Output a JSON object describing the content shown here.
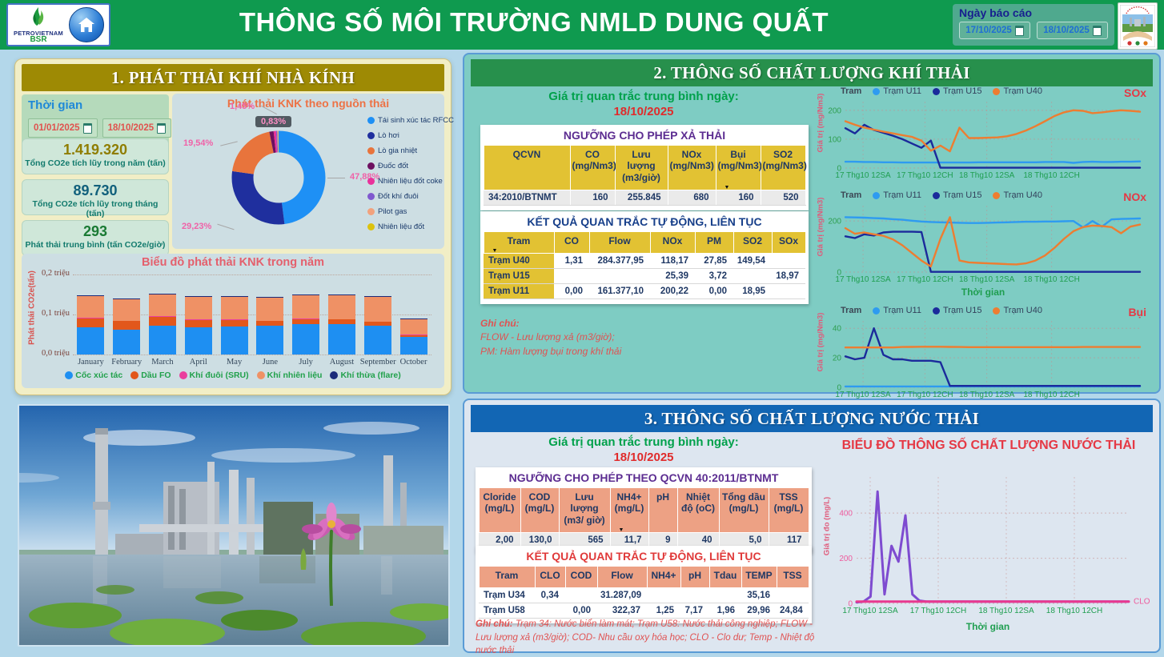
{
  "palette": {
    "header_green": "#0f9a4f",
    "section1_gold": "#9e8a04",
    "section2_green": "#27904c",
    "section3_blue": "#1266b4",
    "section2_bg": "#7eccc3",
    "section3_bg": "#dde6f0",
    "avg_label_green": "#00a14b",
    "date_red": "#e02b2b",
    "note_red": "#e05252"
  },
  "header": {
    "logo_line1": "PETROVIETNAM",
    "logo_line2": "BSR",
    "title": "THÔNG SỐ MÔI TRƯỜNG NMLD DUNG QUẤT",
    "report_date_label": "Ngày báo cáo",
    "date_from": "17/10/2025",
    "date_to": "18/10/2025"
  },
  "section1": {
    "title": "1. PHÁT THẢI KHÍ NHÀ KÍNH",
    "time": {
      "label": "Thời gian",
      "from": "01/01/2025",
      "to": "18/10/2025"
    },
    "stats": [
      {
        "value": "1.419.320",
        "label": "Tổng CO2e tích lũy trong năm (tấn)",
        "value_color": "#8f7d00"
      },
      {
        "value": "89.730",
        "label": "Tổng CO2e tích lũy trong tháng (tấn)",
        "value_color": "#11607c"
      },
      {
        "value": "293",
        "label": "Phát thải trung bình (tấn CO2e/giờ)",
        "value_color": "#1a7a34"
      }
    ]
  },
  "section2": {
    "title": "2. THÔNG SỐ CHẤT LƯỢNG KHÍ THẢI",
    "avg_label": "Giá trị quan trắc trung bình ngày:",
    "avg_date": "18/10/2025",
    "limits_table": {
      "title": "NGƯỠNG CHO PHÉP XẢ THẢI",
      "title_color": "#5c2d91",
      "columns": [
        {
          "label": "QCVN"
        },
        {
          "label": "CO",
          "unit": "(mg/Nm3)"
        },
        {
          "label": "Lưu lượng",
          "unit": "(m3/giờ)"
        },
        {
          "label": "NOx",
          "unit": "(mg/Nm3)"
        },
        {
          "label": "Bụi",
          "unit": "(mg/Nm3)",
          "sort": true
        },
        {
          "label": "SO2",
          "unit": "(mg/Nm3)"
        }
      ],
      "rows": [
        [
          "34:2010/BTNMT",
          "160",
          "255.845",
          "680",
          "160",
          "520"
        ]
      ]
    },
    "results_table": {
      "title": "KẾT QUẢ QUAN TRẮC TỰ ĐỘNG, LIÊN TỤC",
      "title_color": "#173f8a",
      "columns": [
        {
          "label": "Tram",
          "sort": true
        },
        {
          "label": "CO"
        },
        {
          "label": "Flow"
        },
        {
          "label": "NOx"
        },
        {
          "label": "PM"
        },
        {
          "label": "SO2"
        },
        {
          "label": "SOx"
        }
      ],
      "rows": [
        [
          "Trạm U40",
          "1,31",
          "284.377,95",
          "118,17",
          "27,85",
          "149,54",
          ""
        ],
        [
          "Trạm U15",
          "",
          "",
          "25,39",
          "3,72",
          "",
          "18,97"
        ],
        [
          "Trạm U11",
          "0,00",
          "161.377,10",
          "200,22",
          "0,00",
          "18,95",
          ""
        ]
      ]
    },
    "note": {
      "heading": "Ghi chú:",
      "lines": [
        "FLOW - Lưu lượng xả (m3/giờ);",
        "PM: Hàm lượng bụi trong khí thải"
      ]
    }
  },
  "section3": {
    "title": "3. THÔNG SỐ CHẤT LƯỢNG NƯỚC THẢI",
    "avg_label": "Giá trị quan trắc trung bình ngày:",
    "avg_date": "18/10/2025",
    "limits_table": {
      "title": "NGƯỠNG CHO PHÉP THEO QCVN 40:2011/BTNMT",
      "title_color": "#5c2d91",
      "columns": [
        {
          "label": "Cloride",
          "unit": "(mg/L)"
        },
        {
          "label": "COD",
          "unit": "(mg/L)"
        },
        {
          "label": "Lưu lượng",
          "unit": "(m3/ giờ)"
        },
        {
          "label": "NH4+",
          "unit": "(mg/L)",
          "sort": true
        },
        {
          "label": "pH"
        },
        {
          "label": "Nhiệt",
          "unit": "độ (oC)"
        },
        {
          "label": "Tổng dầu",
          "unit": "(mg/L)"
        },
        {
          "label": "TSS",
          "unit": "(mg/L)"
        }
      ],
      "rows": [
        [
          "2,00",
          "130,0",
          "565",
          "11,7",
          "9",
          "40",
          "5,0",
          "117"
        ]
      ]
    },
    "results_table": {
      "title": "KẾT QUẢ QUAN TRẮC TỰ ĐỘNG, LIÊN TỤC",
      "title_color": "#e03a3a",
      "columns": [
        {
          "label": "Tram"
        },
        {
          "label": "CLO"
        },
        {
          "label": "COD"
        },
        {
          "label": "Flow"
        },
        {
          "label": "NH4+"
        },
        {
          "label": "pH"
        },
        {
          "label": "Tdau"
        },
        {
          "label": "TEMP"
        },
        {
          "label": "TSS"
        }
      ],
      "rows": [
        [
          "Trạm U34",
          "0,34",
          "",
          "31.287,09",
          "",
          "",
          "",
          "35,16",
          ""
        ],
        [
          "Trạm U58",
          "",
          "0,00",
          "322,37",
          "1,25",
          "7,17",
          "1,96",
          "29,96",
          "24,84"
        ]
      ]
    },
    "note": {
      "heading": "Ghi chú:",
      "text": "Trạm 34: Nước biển làm mát; Trạm U58: Nước thải công nghiệp; FLOW - Lưu lượng xả (m3/giờ);  COD- Nhu cầu oxy hóa học; CLO - Clo dư; Temp - Nhiệt độ nước thải"
    }
  },
  "chart_data": [
    {
      "id": "knk-donut",
      "type": "pie",
      "title": "Phát thải KNK theo nguồn thải",
      "labels": [
        "Tái sinh xúc tác RFCC",
        "Lò hơi",
        "Lò gia nhiệt",
        "Đuốc đốt",
        "Nhiên liệu đốt coke",
        "Đốt khí đuôi",
        "Pilot gas",
        "Nhiên liệu đốt"
      ],
      "values": [
        47.88,
        29.23,
        19.54,
        1.45,
        0.83,
        0.45,
        0.35,
        0.27
      ],
      "colors": [
        "#1e90f5",
        "#1f2f9e",
        "#e8743c",
        "#6d1060",
        "#e9319b",
        "#8059cf",
        "#f2a27d",
        "#dcc20e"
      ],
      "percent_labels": [
        "47,88%",
        "29,23%",
        "19,54%",
        "1,45%",
        "0,83%"
      ]
    },
    {
      "id": "knk-bar",
      "type": "bar",
      "title": "Biểu đồ phát thải KNK trong năm",
      "ylabel": "Phát thải CO2e(tấn)",
      "yticks": [
        "0,0 triệu",
        "0,1 triệu",
        "0,2 triệu"
      ],
      "ymax": 0.2,
      "categories": [
        "January",
        "February",
        "March",
        "April",
        "May",
        "June",
        "July",
        "August",
        "September",
        "October"
      ],
      "series": [
        {
          "name": "Cốc xúc tác",
          "color": "#1e8ff2",
          "values": [
            0.069,
            0.063,
            0.072,
            0.069,
            0.071,
            0.072,
            0.076,
            0.076,
            0.072,
            0.044
          ]
        },
        {
          "name": "Dầu FO",
          "color": "#e2571b",
          "values": [
            0.022,
            0.021,
            0.023,
            0.018,
            0.016,
            0.012,
            0.013,
            0.012,
            0.01,
            0.005
          ]
        },
        {
          "name": "Khí đuôi (SRU)",
          "color": "#ea3f9e",
          "values": [
            0.001,
            0.001,
            0.001,
            0.001,
            0.001,
            0.001,
            0.001,
            0.001,
            0.001,
            0.001
          ]
        },
        {
          "name": "Khí nhiên liệu",
          "color": "#ef9165",
          "values": [
            0.054,
            0.053,
            0.055,
            0.056,
            0.057,
            0.057,
            0.059,
            0.06,
            0.061,
            0.039
          ]
        },
        {
          "name": "Khí thừa (flare)",
          "color": "#1b2a7a",
          "values": [
            0.002,
            0.002,
            0.002,
            0.002,
            0.002,
            0.002,
            0.002,
            0.002,
            0.002,
            0.002
          ]
        }
      ]
    },
    {
      "id": "sox",
      "type": "line",
      "name": "SOx",
      "legend_title": "Tram",
      "ylabel": "Giá trị (mg/Nm3)",
      "ymax": 230,
      "yticks": [
        0,
        100,
        200
      ],
      "xticks": [
        "17 Thg10 12SA",
        "17 Thg10 12CH",
        "18 Thg10 12SA",
        "18 Thg10 12CH"
      ],
      "series": [
        {
          "name": "Trạm U11",
          "color": "#2e9bf0",
          "values": [
            22,
            22,
            21,
            21,
            20,
            20,
            19,
            19,
            19,
            19,
            19,
            19,
            19,
            19,
            20,
            20,
            20,
            20,
            20,
            20,
            20,
            21,
            21,
            21,
            18,
            21,
            22,
            21,
            21,
            22,
            22,
            23
          ]
        },
        {
          "name": "Trạm U15",
          "color": "#1b2a9b",
          "values": [
            138,
            120,
            150,
            132,
            122,
            112,
            100,
            85,
            70,
            95,
            1,
            1,
            1,
            1,
            1,
            1,
            1,
            1,
            1,
            1,
            1,
            1,
            1,
            1,
            1,
            1,
            1,
            1,
            1,
            1,
            1,
            1
          ]
        },
        {
          "name": "Trạm U40",
          "color": "#ed7d31",
          "values": [
            162,
            150,
            140,
            133,
            126,
            120,
            114,
            108,
            95,
            60,
            78,
            58,
            140,
            104,
            104,
            105,
            106,
            110,
            118,
            130,
            145,
            162,
            180,
            193,
            200,
            198,
            190,
            193,
            197,
            200,
            198,
            195
          ]
        }
      ]
    },
    {
      "id": "nox",
      "type": "line",
      "name": "NOx",
      "legend_title": "Tram",
      "ylabel": "Giá trị (mg/Nm3)",
      "xlabel": "Thời gian",
      "ymax": 260,
      "yticks": [
        0,
        200
      ],
      "xticks": [
        "17 Thg10 12SA",
        "17 Thg10 12CH",
        "18 Thg10 12SA",
        "18 Thg10 12CH"
      ],
      "series": [
        {
          "name": "Trạm U11",
          "color": "#2e9bf0",
          "values": [
            215,
            214,
            213,
            211,
            210,
            207,
            205,
            201,
            198,
            196,
            195,
            194,
            193,
            192,
            192,
            193,
            194,
            195,
            196,
            197,
            197,
            198,
            198,
            199,
            200,
            175,
            200,
            178,
            206,
            208,
            209,
            210
          ]
        },
        {
          "name": "Trạm U15",
          "color": "#1b2a9b",
          "values": [
            140,
            133,
            148,
            143,
            155,
            158,
            158,
            158,
            157,
            1,
            1,
            1,
            1,
            1,
            1,
            1,
            1,
            1,
            1,
            1,
            1,
            1,
            1,
            1,
            1,
            1,
            1,
            1,
            1,
            1,
            1,
            1
          ]
        },
        {
          "name": "Trạm U40",
          "color": "#ed7d31",
          "values": [
            172,
            150,
            155,
            148,
            142,
            128,
            105,
            75,
            45,
            22,
            130,
            215,
            45,
            38,
            36,
            34,
            33,
            31,
            30,
            34,
            45,
            65,
            95,
            130,
            160,
            176,
            182,
            180,
            176,
            152,
            178,
            186
          ]
        }
      ]
    },
    {
      "id": "bui",
      "type": "line",
      "name": "Bụi",
      "legend_title": "Tram",
      "ylabel": "Giá trị (mg/Nm3)",
      "ymax": 45,
      "yticks": [
        0,
        20,
        40
      ],
      "xticks": [
        "17 Thg10 12SA",
        "17 Thg10 12CH",
        "18 Thg10 12SA",
        "18 Thg10 12CH"
      ],
      "series": [
        {
          "name": "Trạm U11",
          "color": "#2e9bf0",
          "values": [
            0.6,
            0.6,
            0.6,
            0.6,
            0.6,
            0.6,
            0.6,
            0.6,
            0.6,
            0.6,
            0.6,
            0.6,
            0.6,
            0.6,
            0.6,
            0.6,
            0.6,
            0.6,
            0.6,
            0.6,
            0.6,
            0.6,
            0.6,
            0.6,
            0.6,
            0.6,
            0.6,
            0.6,
            0.6,
            0.6,
            0.6,
            0.6
          ]
        },
        {
          "name": "Trạm U15",
          "color": "#1b2a9b",
          "values": [
            21,
            19,
            20,
            40,
            22,
            19,
            19,
            18,
            18,
            18,
            17,
            1,
            1,
            1,
            1,
            1,
            1,
            1,
            1,
            1,
            1,
            1,
            1,
            1,
            1,
            1,
            1,
            1,
            1,
            1,
            1,
            1
          ]
        },
        {
          "name": "Trạm U40",
          "color": "#ed7d31",
          "values": [
            27,
            27,
            27,
            27,
            27,
            27,
            27.3,
            27.4,
            27.5,
            27.5,
            27.5,
            27.4,
            27.3,
            27.2,
            27.2,
            27.2,
            27.2,
            27.2,
            27.2,
            27.2,
            27.2,
            27.2,
            27.2,
            27.2,
            27.2,
            27.3,
            27.3,
            27.3,
            27.3,
            27.3,
            27.3,
            27.3
          ]
        }
      ]
    },
    {
      "id": "water",
      "type": "line",
      "title": "BIỂU ĐỒ THÔNG SỐ CHẤT LƯỢNG NƯỚC THẢI",
      "ylabel": "Giá trị đo (mg/L)",
      "xlabel": "Thời gian",
      "right_label": "CLO",
      "ymax": 560,
      "yticks": [
        0,
        200,
        400
      ],
      "xticks": [
        "17 Thg10 12SA",
        "17 Thg10 12CH",
        "18 Thg10 12SA",
        "18 Thg10 12CH"
      ],
      "series": [
        {
          "name": "Giá trị đo",
          "color": "#7e4bd0",
          "values": [
            5,
            8,
            30,
            495,
            40,
            255,
            185,
            390,
            40,
            12,
            8,
            8,
            8,
            8,
            8,
            8,
            8,
            8,
            8,
            8,
            8,
            8,
            8,
            8,
            8,
            8,
            8,
            8,
            8,
            8,
            8,
            8,
            8,
            8,
            8,
            8,
            8,
            8,
            8,
            8
          ]
        },
        {
          "name": "CLO",
          "color": "#e8388f",
          "values": [
            8,
            8,
            8,
            8,
            8,
            8,
            8,
            8,
            8,
            8,
            8,
            8,
            8,
            8,
            8,
            8,
            8,
            8,
            8,
            8,
            8,
            8,
            8,
            8,
            8,
            8,
            8,
            8,
            8,
            8,
            8,
            8,
            8,
            8,
            8,
            8,
            8,
            8,
            8,
            8
          ]
        }
      ]
    }
  ]
}
